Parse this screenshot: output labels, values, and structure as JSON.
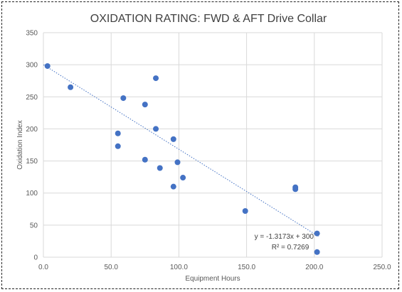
{
  "chart_data": {
    "type": "scatter",
    "title": "OXIDATION RATING: FWD & AFT Drive Collar",
    "xlabel": "Equipment Hours",
    "ylabel": "Oxidation Index",
    "xlim": [
      0,
      250
    ],
    "ylim": [
      0,
      350
    ],
    "x_ticks": [
      "0.0",
      "50.0",
      "100.0",
      "150.0",
      "200.0",
      "250.0"
    ],
    "y_ticks": [
      "0",
      "50",
      "100",
      "150",
      "200",
      "250",
      "300",
      "350"
    ],
    "grid": true,
    "legend": "none",
    "marker_color": "#4472C4",
    "points": [
      {
        "x": 3,
        "y": 298
      },
      {
        "x": 20,
        "y": 265
      },
      {
        "x": 55,
        "y": 193
      },
      {
        "x": 55,
        "y": 173
      },
      {
        "x": 59,
        "y": 248
      },
      {
        "x": 75,
        "y": 238
      },
      {
        "x": 75,
        "y": 152
      },
      {
        "x": 83,
        "y": 279
      },
      {
        "x": 83,
        "y": 200
      },
      {
        "x": 86,
        "y": 139
      },
      {
        "x": 96,
        "y": 184
      },
      {
        "x": 96,
        "y": 110
      },
      {
        "x": 99,
        "y": 148
      },
      {
        "x": 103,
        "y": 124
      },
      {
        "x": 149,
        "y": 72
      },
      {
        "x": 186,
        "y": 109
      },
      {
        "x": 186,
        "y": 106
      },
      {
        "x": 202,
        "y": 37
      },
      {
        "x": 202,
        "y": 8
      }
    ],
    "trendline": {
      "type": "linear",
      "slope": -1.3173,
      "intercept": 300,
      "x_range": [
        0,
        203
      ],
      "style": "dotted",
      "equation_text": "y = -1.3173x + 300",
      "r2_text": "R² = 0.7269"
    }
  }
}
